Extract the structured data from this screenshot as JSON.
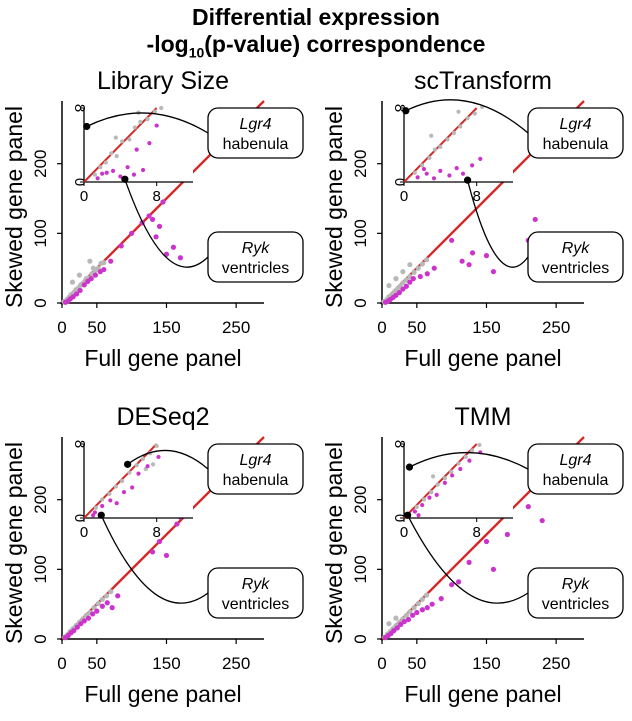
{
  "figure": {
    "title_line1": "Differential expression",
    "title_line2_prefix": "-log",
    "title_line2_sub": "10",
    "title_line2_suffix": "(p-value) correspondence"
  },
  "colors": {
    "diagonal": "#d42a2a",
    "gray_points": "#b8b8b8",
    "magenta_points": "#cc33cc",
    "highlight": "#000000"
  },
  "chart_data": [
    {
      "type": "scatter",
      "title": "Library Size",
      "xlabel": "Full gene panel",
      "ylabel": "Skewed gene panel",
      "xlim": [
        0,
        290
      ],
      "ylim": [
        0,
        290
      ],
      "xticks": [
        "0",
        "50",
        "150",
        "250"
      ],
      "yticks": [
        "0",
        "100",
        "200"
      ],
      "inset": {
        "xlim": [
          0,
          12
        ],
        "ylim": [
          0,
          8
        ],
        "xticks": [
          "0",
          "8"
        ],
        "yticks": [
          "0",
          "8"
        ]
      },
      "gray": [
        [
          3,
          2
        ],
        [
          7,
          5
        ],
        [
          10,
          8
        ],
        [
          13,
          12
        ],
        [
          17,
          15
        ],
        [
          20,
          19
        ],
        [
          24,
          22
        ],
        [
          27,
          26
        ],
        [
          30,
          28
        ],
        [
          34,
          33
        ],
        [
          38,
          36
        ],
        [
          43,
          42
        ],
        [
          48,
          47
        ],
        [
          52,
          50
        ],
        [
          56,
          57
        ],
        [
          60,
          58
        ],
        [
          15,
          30
        ],
        [
          25,
          40
        ],
        [
          35,
          35
        ],
        [
          40,
          60
        ],
        [
          45,
          50
        ]
      ],
      "magenta": [
        [
          5,
          1
        ],
        [
          9,
          3
        ],
        [
          12,
          6
        ],
        [
          16,
          9
        ],
        [
          21,
          13
        ],
        [
          26,
          18
        ],
        [
          32,
          26
        ],
        [
          37,
          31
        ],
        [
          42,
          35
        ],
        [
          48,
          40
        ],
        [
          55,
          45
        ],
        [
          60,
          48
        ],
        [
          70,
          60
        ],
        [
          85,
          82
        ],
        [
          100,
          100
        ],
        [
          130,
          120
        ],
        [
          135,
          95
        ],
        [
          140,
          110
        ],
        [
          145,
          145
        ],
        [
          150,
          70
        ],
        [
          160,
          80
        ],
        [
          170,
          65
        ],
        [
          230,
          230
        ],
        [
          115,
          115
        ],
        [
          125,
          125
        ]
      ],
      "inset_gray": [
        [
          1.2,
          0.8
        ],
        [
          1.8,
          1.6
        ],
        [
          2.4,
          2.1
        ],
        [
          3.0,
          3.1
        ],
        [
          3.6,
          2.8
        ],
        [
          4.2,
          4.4
        ],
        [
          5.0,
          4.6
        ],
        [
          5.6,
          5.9
        ],
        [
          6.2,
          6.5
        ],
        [
          7.0,
          6.8
        ],
        [
          7.8,
          7.6
        ],
        [
          8.5,
          8.0
        ],
        [
          3.5,
          4.8
        ],
        [
          6.0,
          7.5
        ]
      ],
      "inset_magenta": [
        [
          1.5,
          0.4
        ],
        [
          2.5,
          1.0
        ],
        [
          3.2,
          1.2
        ],
        [
          4.0,
          0.6
        ],
        [
          4.8,
          1.6
        ],
        [
          5.5,
          0.8
        ],
        [
          6.5,
          1.3
        ],
        [
          2.0,
          0.9
        ],
        [
          5.8,
          3.5
        ],
        [
          7.2,
          4.2
        ],
        [
          8.0,
          6.1
        ]
      ],
      "highlights": [
        {
          "gene": "Lgr4",
          "region": "habenula",
          "x": 0.3,
          "y": 6.0
        },
        {
          "gene": "Ryk",
          "region": "ventricles",
          "x": 4.5,
          "y": 0.3
        }
      ]
    },
    {
      "type": "scatter",
      "title": "scTransform",
      "xlabel": "Full gene panel",
      "ylabel": "Skewed gene panel",
      "xlim": [
        0,
        290
      ],
      "ylim": [
        0,
        290
      ],
      "xticks": [
        "0",
        "50",
        "150",
        "250"
      ],
      "yticks": [
        "0",
        "100",
        "200"
      ],
      "inset": {
        "xlim": [
          0,
          12
        ],
        "ylim": [
          0,
          8
        ],
        "xticks": [
          "0",
          "8"
        ],
        "yticks": [
          "0",
          "8"
        ]
      },
      "gray": [
        [
          3,
          2
        ],
        [
          7,
          5
        ],
        [
          10,
          9
        ],
        [
          14,
          12
        ],
        [
          18,
          16
        ],
        [
          22,
          20
        ],
        [
          26,
          24
        ],
        [
          30,
          29
        ],
        [
          35,
          33
        ],
        [
          40,
          38
        ],
        [
          46,
          44
        ],
        [
          52,
          50
        ],
        [
          58,
          56
        ],
        [
          64,
          62
        ],
        [
          10,
          25
        ],
        [
          20,
          35
        ],
        [
          30,
          45
        ],
        [
          40,
          55
        ]
      ],
      "magenta": [
        [
          5,
          1
        ],
        [
          9,
          3
        ],
        [
          12,
          5
        ],
        [
          16,
          8
        ],
        [
          20,
          11
        ],
        [
          25,
          15
        ],
        [
          30,
          20
        ],
        [
          35,
          24
        ],
        [
          40,
          30
        ],
        [
          45,
          35
        ],
        [
          55,
          38
        ],
        [
          65,
          42
        ],
        [
          75,
          50
        ],
        [
          100,
          90
        ],
        [
          115,
          60
        ],
        [
          125,
          55
        ],
        [
          130,
          72
        ],
        [
          150,
          68
        ],
        [
          160,
          45
        ],
        [
          210,
          90
        ],
        [
          220,
          120
        ],
        [
          240,
          230
        ],
        [
          260,
          258
        ],
        [
          180,
          180
        ]
      ],
      "inset_gray": [
        [
          1.2,
          1.0
        ],
        [
          2.0,
          1.8
        ],
        [
          2.8,
          2.6
        ],
        [
          3.4,
          3.5
        ],
        [
          4.0,
          3.8
        ],
        [
          4.8,
          4.6
        ],
        [
          5.5,
          5.3
        ],
        [
          6.2,
          6.0
        ],
        [
          7.0,
          6.9
        ],
        [
          7.8,
          7.4
        ],
        [
          8.6,
          8.1
        ],
        [
          3.0,
          5.0
        ],
        [
          6.0,
          7.6
        ]
      ],
      "inset_magenta": [
        [
          1.5,
          0.5
        ],
        [
          2.5,
          0.9
        ],
        [
          3.3,
          0.4
        ],
        [
          4.0,
          1.2
        ],
        [
          5.0,
          0.7
        ],
        [
          5.8,
          1.5
        ],
        [
          6.5,
          0.9
        ],
        [
          7.5,
          1.8
        ],
        [
          2.2,
          1.4
        ],
        [
          8.4,
          2.5
        ]
      ],
      "highlights": [
        {
          "gene": "Lgr4",
          "region": "habenula",
          "x": 0.2,
          "y": 7.7
        },
        {
          "gene": "Ryk",
          "region": "ventricles",
          "x": 7.0,
          "y": 0.2
        }
      ]
    },
    {
      "type": "scatter",
      "title": "DESeq2",
      "xlabel": "Full gene panel",
      "ylabel": "Skewed gene panel",
      "xlim": [
        0,
        290
      ],
      "ylim": [
        0,
        290
      ],
      "xticks": [
        "0",
        "50",
        "150",
        "250"
      ],
      "yticks": [
        "0",
        "100",
        "200"
      ],
      "inset": {
        "xlim": [
          0,
          12
        ],
        "ylim": [
          0,
          8
        ],
        "xticks": [
          "0",
          "8"
        ],
        "yticks": [
          "0",
          "8"
        ]
      },
      "gray": [
        [
          4,
          3
        ],
        [
          8,
          6
        ],
        [
          12,
          11
        ],
        [
          16,
          15
        ],
        [
          20,
          19
        ],
        [
          25,
          24
        ],
        [
          30,
          29
        ],
        [
          35,
          34
        ],
        [
          40,
          38
        ],
        [
          46,
          45
        ],
        [
          52,
          51
        ],
        [
          58,
          57
        ],
        [
          64,
          62
        ],
        [
          70,
          68
        ]
      ],
      "magenta": [
        [
          5,
          2
        ],
        [
          9,
          5
        ],
        [
          13,
          9
        ],
        [
          17,
          12
        ],
        [
          22,
          17
        ],
        [
          27,
          22
        ],
        [
          32,
          26
        ],
        [
          38,
          30
        ],
        [
          44,
          36
        ],
        [
          50,
          40
        ],
        [
          58,
          47
        ],
        [
          65,
          52
        ],
        [
          72,
          45
        ],
        [
          80,
          62
        ],
        [
          130,
          125
        ],
        [
          140,
          140
        ],
        [
          150,
          120
        ],
        [
          170,
          175
        ],
        [
          165,
          165
        ]
      ],
      "inset_gray": [
        [
          1.3,
          1.1
        ],
        [
          2.0,
          2.0
        ],
        [
          2.8,
          2.6
        ],
        [
          3.5,
          3.4
        ],
        [
          4.2,
          4.0
        ],
        [
          5.0,
          4.9
        ],
        [
          5.8,
          5.7
        ],
        [
          6.5,
          6.4
        ],
        [
          7.3,
          7.0
        ],
        [
          8.0,
          7.8
        ],
        [
          6.8,
          5.3
        ],
        [
          7.6,
          5.8
        ]
      ],
      "inset_magenta": [
        [
          1.2,
          0.6
        ],
        [
          2.0,
          1.3
        ],
        [
          2.9,
          1.9
        ],
        [
          3.6,
          1.6
        ],
        [
          4.4,
          2.8
        ],
        [
          5.3,
          3.3
        ],
        [
          6.0,
          4.8
        ],
        [
          7.0,
          5.6
        ],
        [
          8.2,
          6.6
        ],
        [
          1.0,
          0.3
        ]
      ],
      "highlights": [
        {
          "gene": "Lgr4",
          "region": "habenula",
          "x": 4.8,
          "y": 5.8
        },
        {
          "gene": "Ryk",
          "region": "ventricles",
          "x": 1.9,
          "y": 0.3
        }
      ]
    },
    {
      "type": "scatter",
      "title": "TMM",
      "xlabel": "Full gene panel",
      "ylabel": "Skewed gene panel",
      "xlim": [
        0,
        290
      ],
      "ylim": [
        0,
        290
      ],
      "xticks": [
        "0",
        "50",
        "150",
        "250"
      ],
      "yticks": [
        "0",
        "100",
        "200"
      ],
      "inset": {
        "xlim": [
          0,
          12
        ],
        "ylim": [
          0,
          8
        ],
        "xticks": [
          "0",
          "8"
        ],
        "yticks": [
          "0",
          "8"
        ]
      },
      "gray": [
        [
          4,
          3
        ],
        [
          8,
          7
        ],
        [
          12,
          11
        ],
        [
          16,
          15
        ],
        [
          20,
          19
        ],
        [
          25,
          24
        ],
        [
          30,
          29
        ],
        [
          35,
          34
        ],
        [
          40,
          39
        ],
        [
          46,
          45
        ],
        [
          52,
          51
        ],
        [
          58,
          57
        ],
        [
          64,
          63
        ],
        [
          10,
          22
        ],
        [
          20,
          30
        ]
      ],
      "magenta": [
        [
          5,
          2
        ],
        [
          9,
          5
        ],
        [
          13,
          8
        ],
        [
          17,
          12
        ],
        [
          22,
          16
        ],
        [
          27,
          21
        ],
        [
          32,
          25
        ],
        [
          38,
          28
        ],
        [
          44,
          34
        ],
        [
          50,
          38
        ],
        [
          58,
          42
        ],
        [
          65,
          45
        ],
        [
          72,
          50
        ],
        [
          85,
          58
        ],
        [
          100,
          78
        ],
        [
          110,
          82
        ],
        [
          125,
          110
        ],
        [
          150,
          140
        ],
        [
          160,
          100
        ],
        [
          180,
          150
        ],
        [
          210,
          190
        ],
        [
          230,
          170
        ],
        [
          245,
          235
        ]
      ],
      "inset_gray": [
        [
          1.4,
          1.2
        ],
        [
          2.2,
          2.0
        ],
        [
          3.0,
          2.8
        ],
        [
          3.7,
          3.6
        ],
        [
          4.5,
          4.3
        ],
        [
          5.2,
          5.0
        ],
        [
          6.0,
          5.9
        ],
        [
          6.8,
          6.6
        ],
        [
          7.5,
          7.3
        ],
        [
          8.3,
          7.9
        ],
        [
          3.2,
          4.5
        ]
      ],
      "inset_magenta": [
        [
          1.2,
          0.7
        ],
        [
          2.0,
          1.4
        ],
        [
          2.8,
          2.2
        ],
        [
          3.6,
          2.5
        ],
        [
          4.5,
          3.8
        ],
        [
          5.3,
          4.6
        ],
        [
          6.2,
          5.3
        ],
        [
          7.2,
          6.2
        ],
        [
          8.4,
          7.1
        ],
        [
          1.6,
          0.3
        ]
      ],
      "highlights": [
        {
          "gene": "Lgr4",
          "region": "habenula",
          "x": 0.6,
          "y": 5.5
        },
        {
          "gene": "Ryk",
          "region": "ventricles",
          "x": 0.4,
          "y": 0.3
        }
      ]
    }
  ]
}
